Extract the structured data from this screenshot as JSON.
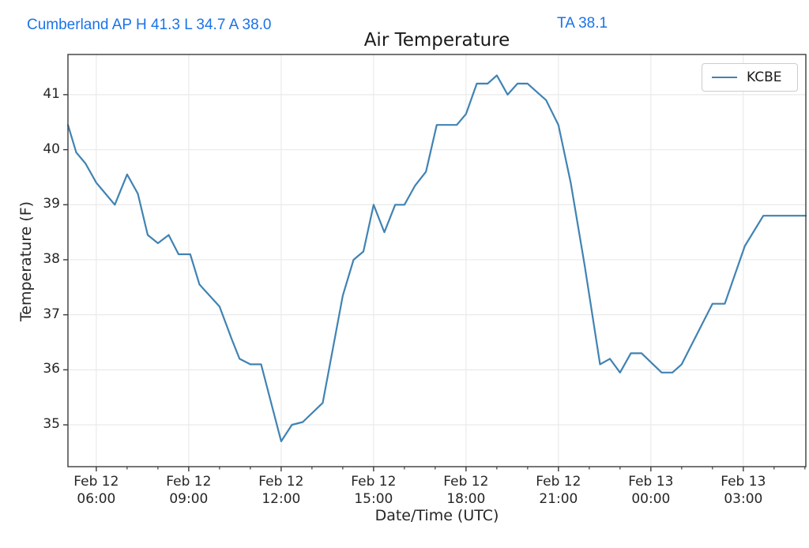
{
  "header": {
    "station_summary": "Cumberland AP H 41.3 L 34.7 A 38.0",
    "ta_reading": "TA 38.1",
    "text_color": "#1a73e8"
  },
  "chart_data": {
    "type": "line",
    "title": "Air Temperature",
    "xlabel": "Date/Time (UTC)",
    "ylabel": "Temperature (F)",
    "legend": [
      "KCBE"
    ],
    "legend_position": "upper right",
    "grid": true,
    "line_color": "#4083b3",
    "grid_color": "#eaeaea",
    "spine_color": "#3b3b3b",
    "x_unit": "hours_since_feb12_0000_utc",
    "xlim": [
      5.08,
      29.03
    ],
    "ylim": [
      34.24,
      41.73
    ],
    "y_ticks": [
      35,
      36,
      37,
      38,
      39,
      40,
      41
    ],
    "x_major_ticks": [
      {
        "hour": 6,
        "date": "Feb 12",
        "time": "06:00"
      },
      {
        "hour": 9,
        "date": "Feb 12",
        "time": "09:00"
      },
      {
        "hour": 12,
        "date": "Feb 12",
        "time": "12:00"
      },
      {
        "hour": 15,
        "date": "Feb 12",
        "time": "15:00"
      },
      {
        "hour": 18,
        "date": "Feb 12",
        "time": "18:00"
      },
      {
        "hour": 21,
        "date": "Feb 12",
        "time": "21:00"
      },
      {
        "hour": 24,
        "date": "Feb 13",
        "time": "00:00"
      },
      {
        "hour": 27,
        "date": "Feb 13",
        "time": "03:00"
      }
    ],
    "x_minor_tick_hours": [
      7,
      8,
      10,
      11,
      13,
      14,
      16,
      17,
      19,
      20,
      22,
      23,
      25,
      26,
      28,
      29
    ],
    "series": [
      {
        "name": "KCBE",
        "points": [
          [
            5.08,
            40.45
          ],
          [
            5.35,
            39.95
          ],
          [
            5.65,
            39.75
          ],
          [
            6.0,
            39.4
          ],
          [
            6.6,
            39.0
          ],
          [
            7.0,
            39.55
          ],
          [
            7.35,
            39.2
          ],
          [
            7.67,
            38.45
          ],
          [
            8.0,
            38.3
          ],
          [
            8.35,
            38.45
          ],
          [
            8.67,
            38.1
          ],
          [
            9.05,
            38.1
          ],
          [
            9.35,
            37.55
          ],
          [
            10.0,
            37.15
          ],
          [
            10.4,
            36.55
          ],
          [
            10.65,
            36.2
          ],
          [
            11.0,
            36.1
          ],
          [
            11.35,
            36.1
          ],
          [
            12.0,
            34.7
          ],
          [
            12.35,
            35.0
          ],
          [
            12.7,
            35.05
          ],
          [
            13.35,
            35.4
          ],
          [
            14.0,
            37.35
          ],
          [
            14.35,
            38.0
          ],
          [
            14.67,
            38.15
          ],
          [
            15.0,
            39.0
          ],
          [
            15.35,
            38.5
          ],
          [
            15.7,
            39.0
          ],
          [
            16.0,
            39.0
          ],
          [
            16.35,
            39.35
          ],
          [
            16.7,
            39.6
          ],
          [
            17.05,
            40.45
          ],
          [
            17.7,
            40.45
          ],
          [
            18.0,
            40.65
          ],
          [
            18.35,
            41.2
          ],
          [
            18.7,
            41.2
          ],
          [
            19.0,
            41.35
          ],
          [
            19.35,
            41.0
          ],
          [
            19.67,
            41.2
          ],
          [
            20.0,
            41.2
          ],
          [
            20.3,
            41.05
          ],
          [
            20.6,
            40.9
          ],
          [
            21.0,
            40.45
          ],
          [
            21.4,
            39.4
          ],
          [
            21.85,
            37.9
          ],
          [
            22.35,
            36.1
          ],
          [
            22.67,
            36.2
          ],
          [
            23.0,
            35.95
          ],
          [
            23.35,
            36.3
          ],
          [
            23.7,
            36.3
          ],
          [
            24.35,
            35.95
          ],
          [
            24.7,
            35.95
          ],
          [
            25.0,
            36.1
          ],
          [
            26.0,
            37.2
          ],
          [
            26.4,
            37.2
          ],
          [
            27.05,
            38.25
          ],
          [
            27.65,
            38.8
          ],
          [
            29.03,
            38.8
          ]
        ]
      }
    ]
  }
}
